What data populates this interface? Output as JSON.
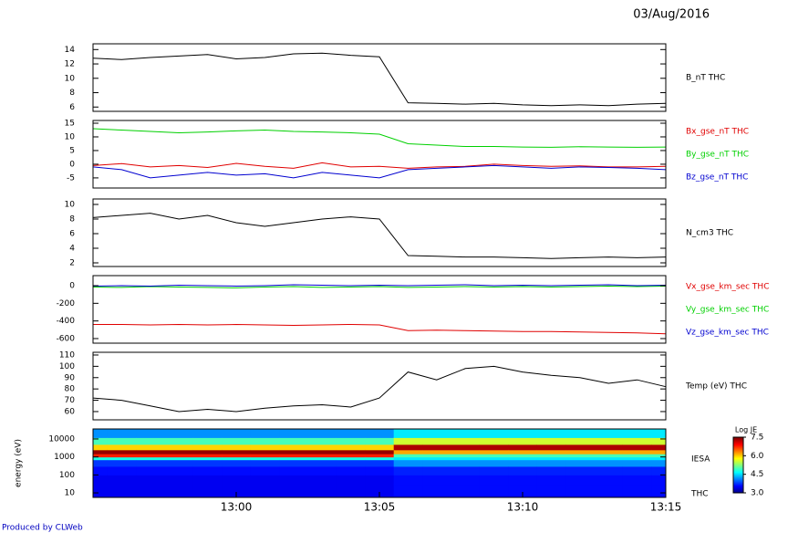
{
  "date": "03/Aug/2016",
  "credit": "Produced by CLWeb",
  "chart_data": [
    {
      "type": "line",
      "x": [
        "12:55",
        "12:56",
        "12:57",
        "12:58",
        "12:59",
        "13:00",
        "13:01",
        "13:02",
        "13:03",
        "13:04",
        "13:05",
        "13:06",
        "13:07",
        "13:08",
        "13:09",
        "13:10",
        "13:11",
        "13:12",
        "13:13",
        "13:14",
        "13:15"
      ],
      "xlim": [
        "12:55",
        "13:15"
      ],
      "ylim": [
        5.4,
        14.8
      ],
      "yticks": [
        6,
        8,
        10,
        12,
        14
      ],
      "series": [
        {
          "name": "B_nT THC",
          "color": "#000000",
          "values": [
            12.8,
            12.6,
            12.9,
            13.1,
            13.3,
            12.7,
            12.9,
            13.4,
            13.5,
            13.2,
            13.0,
            6.6,
            6.5,
            6.4,
            6.5,
            6.3,
            6.2,
            6.3,
            6.2,
            6.4,
            6.5
          ]
        }
      ]
    },
    {
      "type": "line",
      "x": [
        "12:55",
        "12:56",
        "12:57",
        "12:58",
        "12:59",
        "13:00",
        "13:01",
        "13:02",
        "13:03",
        "13:04",
        "13:05",
        "13:06",
        "13:07",
        "13:08",
        "13:09",
        "13:10",
        "13:11",
        "13:12",
        "13:13",
        "13:14",
        "13:15"
      ],
      "xlim": [
        "12:55",
        "13:15"
      ],
      "ylim": [
        -8.7,
        16
      ],
      "yticks": [
        -5,
        0,
        5,
        10,
        15
      ],
      "series": [
        {
          "name": "Bx_gse_nT THC",
          "color": "#e00000",
          "values": [
            -0.5,
            0.2,
            -1,
            -0.5,
            -1.2,
            0.3,
            -0.8,
            -1.5,
            0.5,
            -1,
            -0.8,
            -1.5,
            -1,
            -0.8,
            0,
            -0.5,
            -0.8,
            -0.6,
            -1,
            -1,
            -0.8
          ]
        },
        {
          "name": "By_gse_nT THC",
          "color": "#00d000",
          "values": [
            13,
            12.5,
            12,
            11.5,
            11.8,
            12.2,
            12.5,
            12,
            11.8,
            11.5,
            11,
            7.5,
            7,
            6.5,
            6.5,
            6.3,
            6.2,
            6.4,
            6.3,
            6.2,
            6.3
          ]
        },
        {
          "name": "Bz_gse_nT THC",
          "color": "#0000d0",
          "values": [
            -1,
            -2,
            -5,
            -4,
            -3,
            -4,
            -3.5,
            -5,
            -3,
            -4,
            -5,
            -2,
            -1.5,
            -1,
            -0.5,
            -1,
            -1.5,
            -1,
            -1.2,
            -1.5,
            -2
          ]
        }
      ]
    },
    {
      "type": "line",
      "x": [
        "12:55",
        "12:56",
        "12:57",
        "12:58",
        "12:59",
        "13:00",
        "13:01",
        "13:02",
        "13:03",
        "13:04",
        "13:05",
        "13:06",
        "13:07",
        "13:08",
        "13:09",
        "13:10",
        "13:11",
        "13:12",
        "13:13",
        "13:14",
        "13:15"
      ],
      "xlim": [
        "12:55",
        "13:15"
      ],
      "ylim": [
        1.5,
        10.75
      ],
      "yticks": [
        2,
        4,
        6,
        8,
        10
      ],
      "series": [
        {
          "name": "N_cm3 THC",
          "color": "#000000",
          "values": [
            8.2,
            8.5,
            8.8,
            8,
            8.5,
            7.5,
            7,
            7.5,
            8,
            8.3,
            8,
            3,
            2.9,
            2.8,
            2.8,
            2.7,
            2.6,
            2.7,
            2.8,
            2.7,
            2.8
          ]
        }
      ]
    },
    {
      "type": "line",
      "x": [
        "12:55",
        "12:56",
        "12:57",
        "12:58",
        "12:59",
        "13:00",
        "13:01",
        "13:02",
        "13:03",
        "13:04",
        "13:05",
        "13:06",
        "13:07",
        "13:08",
        "13:09",
        "13:10",
        "13:11",
        "13:12",
        "13:13",
        "13:14",
        "13:15"
      ],
      "xlim": [
        "12:55",
        "13:15"
      ],
      "ylim": [
        -652,
        114
      ],
      "yticks": [
        -600,
        -400,
        -200,
        0
      ],
      "series": [
        {
          "name": "Vx_gse_km_sec THC",
          "color": "#e00000",
          "values": [
            -440,
            -440,
            -445,
            -440,
            -445,
            -440,
            -445,
            -450,
            -445,
            -440,
            -445,
            -510,
            -505,
            -510,
            -515,
            -520,
            -520,
            -525,
            -530,
            -535,
            -545
          ]
        },
        {
          "name": "Vy_gse_km_sec THC",
          "color": "#00d000",
          "values": [
            -15,
            -20,
            -10,
            -15,
            -20,
            -25,
            -15,
            -10,
            -20,
            -15,
            -10,
            -20,
            -15,
            -10,
            -15,
            -10,
            -15,
            -10,
            -5,
            -10,
            -5
          ]
        },
        {
          "name": "Vz_gse_km_sec THC",
          "color": "#0000d0",
          "values": [
            -5,
            0,
            -5,
            5,
            0,
            -5,
            0,
            10,
            5,
            0,
            5,
            0,
            5,
            10,
            0,
            5,
            0,
            5,
            10,
            0,
            5
          ]
        }
      ]
    },
    {
      "type": "line",
      "x": [
        "12:55",
        "12:56",
        "12:57",
        "12:58",
        "12:59",
        "13:00",
        "13:01",
        "13:02",
        "13:03",
        "13:04",
        "13:05",
        "13:06",
        "13:07",
        "13:08",
        "13:09",
        "13:10",
        "13:11",
        "13:12",
        "13:13",
        "13:14",
        "13:15"
      ],
      "xlim": [
        "12:55",
        "13:15"
      ],
      "ylim": [
        52.7,
        112.4
      ],
      "yticks": [
        60,
        70,
        80,
        90,
        100,
        110
      ],
      "series": [
        {
          "name": "Temp (eV) THC",
          "color": "#000000",
          "values": [
            72,
            70,
            65,
            60,
            62,
            60,
            63,
            65,
            66,
            64,
            72,
            95,
            88,
            98,
            100,
            95,
            92,
            90,
            85,
            88,
            82
          ]
        }
      ]
    },
    {
      "type": "heatmap",
      "x": [
        "12:55",
        "12:56",
        "12:57",
        "12:58",
        "12:59",
        "13:00",
        "13:01",
        "13:02",
        "13:03",
        "13:04",
        "13:05",
        "13:06",
        "13:07",
        "13:08",
        "13:09",
        "13:10",
        "13:11",
        "13:12",
        "13:13",
        "13:14",
        "13:15"
      ],
      "xlim": [
        "12:55",
        "13:15"
      ],
      "xticks": [
        "13:00",
        "13:05",
        "13:10",
        "13:15"
      ],
      "ylabel": "energy (eV)",
      "label": "IESA",
      "instrument": "THC",
      "log_scale": true,
      "ylim": [
        5.6,
        36000
      ],
      "yticks": [
        10,
        100,
        1000,
        10000
      ],
      "ybins": [
        5.6,
        30,
        100,
        300,
        700,
        1000,
        1500,
        2500,
        5000,
        12000,
        36000
      ],
      "colorbar_title": "Log JE",
      "zlim": [
        3.0,
        7.5
      ],
      "zticks": [
        {
          "value": 3,
          "label": "3.0"
        },
        {
          "value": 4.5,
          "label": "4.5"
        },
        {
          "value": 6,
          "label": "6.0"
        },
        {
          "value": 7.5,
          "label": "7.5"
        }
      ],
      "z": [
        [
          3.5,
          3.5,
          3.6,
          3.8,
          4.8,
          6.8,
          7.4,
          6.0,
          5.0,
          4.2
        ],
        [
          3.5,
          3.5,
          3.6,
          3.8,
          4.8,
          6.8,
          7.4,
          6.0,
          5.0,
          4.2
        ],
        [
          3.5,
          3.5,
          3.6,
          3.8,
          4.8,
          6.8,
          7.4,
          6.0,
          5.0,
          4.2
        ],
        [
          3.5,
          3.5,
          3.6,
          3.8,
          4.8,
          6.8,
          7.4,
          6.0,
          5.0,
          4.2
        ],
        [
          3.5,
          3.5,
          3.6,
          3.8,
          4.8,
          6.8,
          7.4,
          6.0,
          5.0,
          4.2
        ],
        [
          3.5,
          3.5,
          3.6,
          3.8,
          4.8,
          6.8,
          7.4,
          6.0,
          5.0,
          4.2
        ],
        [
          3.5,
          3.5,
          3.6,
          3.8,
          4.8,
          6.8,
          7.4,
          6.0,
          5.0,
          4.2
        ],
        [
          3.5,
          3.5,
          3.6,
          3.8,
          4.8,
          6.8,
          7.4,
          6.0,
          5.0,
          4.2
        ],
        [
          3.5,
          3.5,
          3.6,
          3.8,
          4.8,
          6.8,
          7.4,
          6.0,
          5.0,
          4.2
        ],
        [
          3.5,
          3.5,
          3.6,
          3.8,
          4.8,
          6.8,
          7.4,
          6.0,
          5.0,
          4.2
        ],
        [
          3.5,
          3.5,
          3.6,
          3.8,
          4.8,
          6.8,
          7.4,
          6.0,
          5.0,
          4.2
        ],
        [
          3.6,
          3.6,
          3.7,
          4.2,
          4.6,
          5.0,
          6.2,
          7.3,
          5.6,
          4.6
        ],
        [
          3.6,
          3.6,
          3.7,
          4.2,
          4.6,
          5.0,
          6.2,
          7.3,
          5.6,
          4.6
        ],
        [
          3.6,
          3.6,
          3.7,
          4.2,
          4.6,
          5.0,
          6.2,
          7.3,
          5.6,
          4.6
        ],
        [
          3.6,
          3.6,
          3.7,
          4.2,
          4.6,
          5.0,
          6.2,
          7.3,
          5.6,
          4.6
        ],
        [
          3.6,
          3.6,
          3.7,
          4.2,
          4.6,
          5.0,
          6.2,
          7.3,
          5.6,
          4.6
        ],
        [
          3.6,
          3.6,
          3.7,
          4.2,
          4.6,
          5.0,
          6.2,
          7.3,
          5.6,
          4.6
        ],
        [
          3.6,
          3.6,
          3.7,
          4.2,
          4.6,
          5.0,
          6.2,
          7.3,
          5.6,
          4.6
        ],
        [
          3.6,
          3.6,
          3.7,
          4.2,
          4.6,
          5.0,
          6.2,
          7.3,
          5.6,
          4.6
        ],
        [
          3.6,
          3.6,
          3.7,
          4.2,
          4.6,
          5.0,
          6.2,
          7.3,
          5.6,
          4.6
        ],
        [
          3.6,
          3.6,
          3.7,
          4.2,
          4.6,
          5.0,
          6.2,
          7.3,
          5.6,
          4.6
        ]
      ]
    }
  ]
}
